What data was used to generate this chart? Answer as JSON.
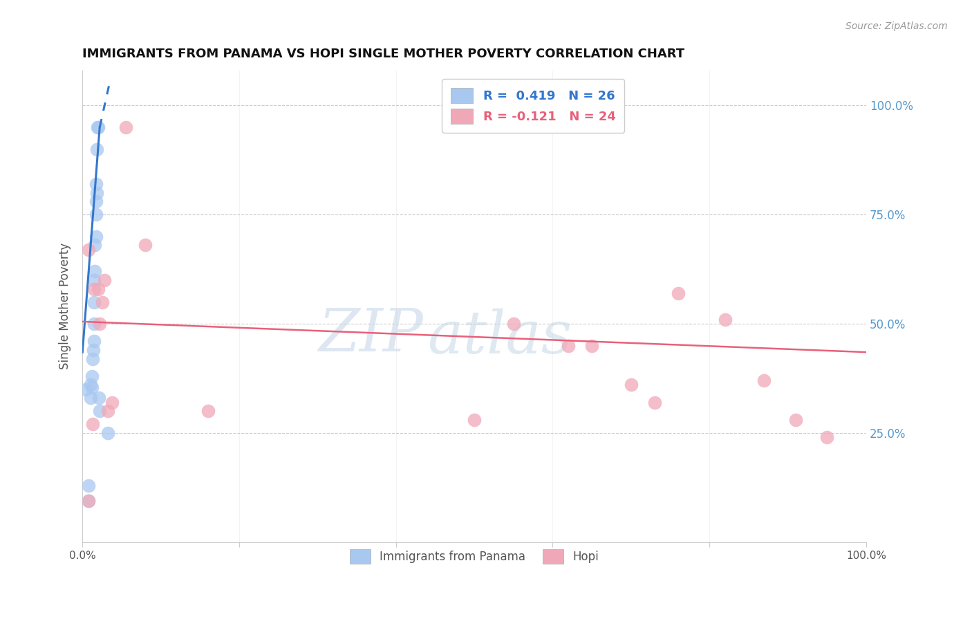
{
  "title": "IMMIGRANTS FROM PANAMA VS HOPI SINGLE MOTHER POVERTY CORRELATION CHART",
  "source": "Source: ZipAtlas.com",
  "ylabel": "Single Mother Poverty",
  "legend_blue_label": "Immigrants from Panama",
  "legend_pink_label": "Hopi",
  "legend_blue_text": "R =  0.419   N = 26",
  "legend_pink_text": "R = -0.121   N = 24",
  "blue_color": "#a8c8f0",
  "pink_color": "#f0a8b8",
  "blue_line_color": "#3377cc",
  "pink_line_color": "#e8607a",
  "watermark_zip": "ZIP",
  "watermark_atlas": "atlas",
  "xlim": [
    0.0,
    1.0
  ],
  "ylim": [
    0.0,
    1.08
  ],
  "blue_x": [
    0.008,
    0.008,
    0.01,
    0.01,
    0.012,
    0.012,
    0.013,
    0.014,
    0.015,
    0.015,
    0.015,
    0.015,
    0.016,
    0.016,
    0.017,
    0.017,
    0.017,
    0.017,
    0.018,
    0.018,
    0.019,
    0.02,
    0.021,
    0.022,
    0.032,
    0.004
  ],
  "blue_y": [
    0.095,
    0.13,
    0.33,
    0.36,
    0.355,
    0.38,
    0.42,
    0.44,
    0.46,
    0.5,
    0.55,
    0.6,
    0.62,
    0.68,
    0.7,
    0.75,
    0.78,
    0.82,
    0.8,
    0.9,
    0.95,
    0.95,
    0.33,
    0.3,
    0.25,
    0.35
  ],
  "pink_x": [
    0.008,
    0.008,
    0.013,
    0.015,
    0.02,
    0.022,
    0.025,
    0.028,
    0.032,
    0.038,
    0.055,
    0.08,
    0.16,
    0.5,
    0.55,
    0.62,
    0.65,
    0.7,
    0.73,
    0.76,
    0.82,
    0.87,
    0.91,
    0.95
  ],
  "pink_y": [
    0.095,
    0.67,
    0.27,
    0.58,
    0.58,
    0.5,
    0.55,
    0.6,
    0.3,
    0.32,
    0.95,
    0.68,
    0.3,
    0.28,
    0.5,
    0.45,
    0.45,
    0.36,
    0.32,
    0.57,
    0.51,
    0.37,
    0.28,
    0.24
  ],
  "blue_line_x0": 0.0,
  "blue_line_y0": 0.435,
  "blue_line_x1": 0.022,
  "blue_line_y1": 0.95,
  "blue_line_x1_ext": 0.035,
  "blue_line_y1_ext": 1.055,
  "pink_line_x0": 0.0,
  "pink_line_y0": 0.505,
  "pink_line_x1": 1.0,
  "pink_line_y1": 0.435,
  "ytick_vals": [
    0.25,
    0.5,
    0.75,
    1.0
  ],
  "ytick_labels": [
    "25.0%",
    "50.0%",
    "75.0%",
    "100.0%"
  ]
}
